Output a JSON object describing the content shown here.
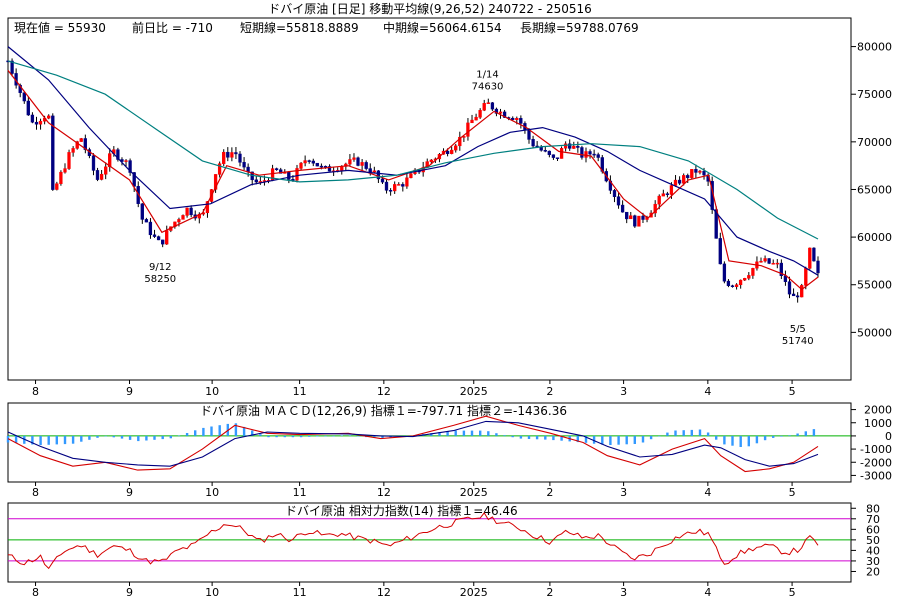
{
  "chart_data": [
    {
      "type": "candlestick",
      "title": "ドバイ原油 [日足]  移動平均線(9,26,52)  240722 - 250516",
      "info": {
        "current": "現在値 = 55930",
        "change": "前日比 = -710",
        "short_ma": "短期線=55818.8889",
        "mid_ma": "中期線=56064.6154",
        "long_ma": "長期線=59788.0769"
      },
      "ylim": [
        45000,
        83000
      ],
      "yticks": [
        50000,
        55000,
        60000,
        65000,
        70000,
        75000,
        80000
      ],
      "ytick_labels": [
        "50000",
        "55000",
        "60000",
        "65000",
        "70000",
        "75000",
        "80000"
      ],
      "xticks": [
        {
          "label": "8",
          "t": 0.034
        },
        {
          "label": "9",
          "t": 0.15
        },
        {
          "label": "10",
          "t": 0.252
        },
        {
          "label": "11",
          "t": 0.36
        },
        {
          "label": "12",
          "t": 0.464
        },
        {
          "label": "2025",
          "t": 0.575
        },
        {
          "label": "2",
          "t": 0.669
        },
        {
          "label": "3",
          "t": 0.76
        },
        {
          "label": "4",
          "t": 0.864
        },
        {
          "label": "5",
          "t": 0.968
        }
      ],
      "annotations": [
        {
          "date": "9/12",
          "value": "58250",
          "t": 0.188,
          "price": 58250,
          "pos": "below"
        },
        {
          "date": "1/14",
          "value": "74630",
          "t": 0.592,
          "price": 74630,
          "pos": "above"
        },
        {
          "date": "5/5",
          "value": "51740",
          "t": 0.975,
          "price": 51740,
          "pos": "below"
        }
      ],
      "closes": [
        {
          "t": 0.0,
          "v": 78500
        },
        {
          "t": 0.03,
          "v": 72000
        },
        {
          "t": 0.05,
          "v": 73000
        },
        {
          "t": 0.055,
          "v": 64500
        },
        {
          "t": 0.075,
          "v": 68500
        },
        {
          "t": 0.09,
          "v": 70500
        },
        {
          "t": 0.11,
          "v": 66000
        },
        {
          "t": 0.13,
          "v": 69000
        },
        {
          "t": 0.15,
          "v": 67500
        },
        {
          "t": 0.165,
          "v": 62000
        },
        {
          "t": 0.18,
          "v": 60000
        },
        {
          "t": 0.188,
          "v": 59200
        },
        {
          "t": 0.2,
          "v": 61000
        },
        {
          "t": 0.22,
          "v": 63000
        },
        {
          "t": 0.24,
          "v": 62000
        },
        {
          "t": 0.255,
          "v": 66500
        },
        {
          "t": 0.265,
          "v": 68500
        },
        {
          "t": 0.28,
          "v": 69000
        },
        {
          "t": 0.295,
          "v": 66500
        },
        {
          "t": 0.31,
          "v": 65500
        },
        {
          "t": 0.33,
          "v": 67000
        },
        {
          "t": 0.35,
          "v": 66000
        },
        {
          "t": 0.37,
          "v": 68500
        },
        {
          "t": 0.39,
          "v": 67000
        },
        {
          "t": 0.41,
          "v": 67500
        },
        {
          "t": 0.43,
          "v": 68000
        },
        {
          "t": 0.45,
          "v": 67000
        },
        {
          "t": 0.465,
          "v": 65000
        },
        {
          "t": 0.485,
          "v": 65500
        },
        {
          "t": 0.5,
          "v": 66500
        },
        {
          "t": 0.52,
          "v": 68000
        },
        {
          "t": 0.54,
          "v": 69000
        },
        {
          "t": 0.56,
          "v": 70500
        },
        {
          "t": 0.575,
          "v": 72500
        },
        {
          "t": 0.592,
          "v": 74000
        },
        {
          "t": 0.61,
          "v": 73000
        },
        {
          "t": 0.63,
          "v": 72500
        },
        {
          "t": 0.645,
          "v": 70000
        },
        {
          "t": 0.66,
          "v": 69000
        },
        {
          "t": 0.675,
          "v": 68000
        },
        {
          "t": 0.69,
          "v": 70000
        },
        {
          "t": 0.71,
          "v": 68500
        },
        {
          "t": 0.725,
          "v": 69000
        },
        {
          "t": 0.74,
          "v": 66000
        },
        {
          "t": 0.76,
          "v": 62500
        },
        {
          "t": 0.775,
          "v": 61500
        },
        {
          "t": 0.79,
          "v": 62500
        },
        {
          "t": 0.81,
          "v": 64500
        },
        {
          "t": 0.83,
          "v": 66000
        },
        {
          "t": 0.85,
          "v": 67000
        },
        {
          "t": 0.864,
          "v": 66000
        },
        {
          "t": 0.872,
          "v": 61000
        },
        {
          "t": 0.882,
          "v": 55500
        },
        {
          "t": 0.895,
          "v": 55000
        },
        {
          "t": 0.91,
          "v": 56000
        },
        {
          "t": 0.93,
          "v": 57500
        },
        {
          "t": 0.95,
          "v": 57000
        },
        {
          "t": 0.968,
          "v": 53500
        },
        {
          "t": 0.98,
          "v": 54500
        },
        {
          "t": 0.99,
          "v": 58500
        },
        {
          "t": 1.0,
          "v": 55930
        }
      ],
      "ma": [
        {
          "name": "",
          "color": "#d40000",
          "points": [
            {
              "t": 0.0,
              "v": 77500
            },
            {
              "t": 0.05,
              "v": 72000
            },
            {
              "t": 0.1,
              "v": 69000
            },
            {
              "t": 0.15,
              "v": 66000
            },
            {
              "t": 0.19,
              "v": 60500
            },
            {
              "t": 0.24,
              "v": 62500
            },
            {
              "t": 0.27,
              "v": 67500
            },
            {
              "t": 0.31,
              "v": 66500
            },
            {
              "t": 0.36,
              "v": 67000
            },
            {
              "t": 0.42,
              "v": 67500
            },
            {
              "t": 0.47,
              "v": 66000
            },
            {
              "t": 0.52,
              "v": 67500
            },
            {
              "t": 0.56,
              "v": 70500
            },
            {
              "t": 0.6,
              "v": 73200
            },
            {
              "t": 0.64,
              "v": 71500
            },
            {
              "t": 0.68,
              "v": 69000
            },
            {
              "t": 0.72,
              "v": 68500
            },
            {
              "t": 0.76,
              "v": 64000
            },
            {
              "t": 0.79,
              "v": 62000
            },
            {
              "t": 0.84,
              "v": 66000
            },
            {
              "t": 0.865,
              "v": 66500
            },
            {
              "t": 0.89,
              "v": 57500
            },
            {
              "t": 0.93,
              "v": 57000
            },
            {
              "t": 0.96,
              "v": 56000
            },
            {
              "t": 0.98,
              "v": 54500
            },
            {
              "t": 1.0,
              "v": 55800
            }
          ]
        },
        {
          "name": "",
          "color": "#000080",
          "points": [
            {
              "t": 0.0,
              "v": 80000
            },
            {
              "t": 0.05,
              "v": 76500
            },
            {
              "t": 0.1,
              "v": 71500
            },
            {
              "t": 0.15,
              "v": 67000
            },
            {
              "t": 0.2,
              "v": 63000
            },
            {
              "t": 0.25,
              "v": 63500
            },
            {
              "t": 0.3,
              "v": 65500
            },
            {
              "t": 0.36,
              "v": 66500
            },
            {
              "t": 0.42,
              "v": 67000
            },
            {
              "t": 0.48,
              "v": 66500
            },
            {
              "t": 0.54,
              "v": 67500
            },
            {
              "t": 0.58,
              "v": 69500
            },
            {
              "t": 0.62,
              "v": 71000
            },
            {
              "t": 0.66,
              "v": 71500
            },
            {
              "t": 0.7,
              "v": 70500
            },
            {
              "t": 0.74,
              "v": 69000
            },
            {
              "t": 0.78,
              "v": 67000
            },
            {
              "t": 0.82,
              "v": 65500
            },
            {
              "t": 0.86,
              "v": 64000
            },
            {
              "t": 0.9,
              "v": 60000
            },
            {
              "t": 0.94,
              "v": 58500
            },
            {
              "t": 0.97,
              "v": 57500
            },
            {
              "t": 1.0,
              "v": 56000
            }
          ]
        },
        {
          "name": "",
          "color": "#008080",
          "points": [
            {
              "t": 0.0,
              "v": 78500
            },
            {
              "t": 0.06,
              "v": 77000
            },
            {
              "t": 0.12,
              "v": 75000
            },
            {
              "t": 0.18,
              "v": 71500
            },
            {
              "t": 0.24,
              "v": 68000
            },
            {
              "t": 0.3,
              "v": 66500
            },
            {
              "t": 0.36,
              "v": 65800
            },
            {
              "t": 0.42,
              "v": 66000
            },
            {
              "t": 0.48,
              "v": 66500
            },
            {
              "t": 0.54,
              "v": 67800
            },
            {
              "t": 0.6,
              "v": 68800
            },
            {
              "t": 0.66,
              "v": 69500
            },
            {
              "t": 0.72,
              "v": 69800
            },
            {
              "t": 0.78,
              "v": 69500
            },
            {
              "t": 0.84,
              "v": 68000
            },
            {
              "t": 0.9,
              "v": 65000
            },
            {
              "t": 0.95,
              "v": 62000
            },
            {
              "t": 1.0,
              "v": 59800
            }
          ]
        }
      ]
    },
    {
      "type": "macd",
      "title": "ドバイ原油    ＭＡＣＤ(12,26,9) 指標１=-797.71   指標２=-1436.36",
      "ylim": [
        -3500,
        2500
      ],
      "yticks": [
        2000,
        1000,
        0,
        -1000,
        -2000,
        -3000
      ],
      "ytick_labels": [
        "2000",
        "1000",
        "0",
        "-1000",
        "-2000",
        "-3000"
      ],
      "macd": [
        {
          "t": 0.0,
          "v": -200
        },
        {
          "t": 0.04,
          "v": -1500
        },
        {
          "t": 0.08,
          "v": -2300
        },
        {
          "t": 0.12,
          "v": -2000
        },
        {
          "t": 0.16,
          "v": -2600
        },
        {
          "t": 0.2,
          "v": -2500
        },
        {
          "t": 0.24,
          "v": -1000
        },
        {
          "t": 0.28,
          "v": 800
        },
        {
          "t": 0.32,
          "v": 200
        },
        {
          "t": 0.36,
          "v": 100
        },
        {
          "t": 0.42,
          "v": 200
        },
        {
          "t": 0.46,
          "v": -200
        },
        {
          "t": 0.5,
          "v": 0
        },
        {
          "t": 0.55,
          "v": 800
        },
        {
          "t": 0.59,
          "v": 1500
        },
        {
          "t": 0.63,
          "v": 800
        },
        {
          "t": 0.67,
          "v": 200
        },
        {
          "t": 0.71,
          "v": -500
        },
        {
          "t": 0.74,
          "v": -1500
        },
        {
          "t": 0.78,
          "v": -2200
        },
        {
          "t": 0.82,
          "v": -1000
        },
        {
          "t": 0.86,
          "v": -200
        },
        {
          "t": 0.88,
          "v": -1500
        },
        {
          "t": 0.91,
          "v": -2700
        },
        {
          "t": 0.94,
          "v": -2500
        },
        {
          "t": 0.97,
          "v": -2000
        },
        {
          "t": 1.0,
          "v": -800
        }
      ],
      "signal": [
        {
          "t": 0.0,
          "v": 300
        },
        {
          "t": 0.04,
          "v": -800
        },
        {
          "t": 0.08,
          "v": -1700
        },
        {
          "t": 0.12,
          "v": -2000
        },
        {
          "t": 0.16,
          "v": -2200
        },
        {
          "t": 0.2,
          "v": -2300
        },
        {
          "t": 0.24,
          "v": -1600
        },
        {
          "t": 0.28,
          "v": -200
        },
        {
          "t": 0.32,
          "v": 300
        },
        {
          "t": 0.36,
          "v": 200
        },
        {
          "t": 0.42,
          "v": 150
        },
        {
          "t": 0.46,
          "v": 0
        },
        {
          "t": 0.5,
          "v": -50
        },
        {
          "t": 0.55,
          "v": 400
        },
        {
          "t": 0.59,
          "v": 1100
        },
        {
          "t": 0.63,
          "v": 1000
        },
        {
          "t": 0.67,
          "v": 500
        },
        {
          "t": 0.71,
          "v": 0
        },
        {
          "t": 0.74,
          "v": -800
        },
        {
          "t": 0.78,
          "v": -1600
        },
        {
          "t": 0.82,
          "v": -1400
        },
        {
          "t": 0.86,
          "v": -700
        },
        {
          "t": 0.88,
          "v": -900
        },
        {
          "t": 0.91,
          "v": -1800
        },
        {
          "t": 0.94,
          "v": -2300
        },
        {
          "t": 0.97,
          "v": -2100
        },
        {
          "t": 1.0,
          "v": -1400
        }
      ]
    },
    {
      "type": "rsi",
      "title": "ドバイ原油    相対力指数(14) 指標１=46.46",
      "ylim": [
        10,
        85
      ],
      "yticks": [
        80,
        70,
        60,
        50,
        40,
        30,
        20
      ],
      "ytick_labels": [
        "80",
        "70",
        "60",
        "50",
        "40",
        "30",
        "20"
      ],
      "levels": [
        {
          "v": 70,
          "color": "#d000d0"
        },
        {
          "v": 50,
          "color": "#00b000"
        },
        {
          "v": 30,
          "color": "#d000d0"
        }
      ],
      "values": [
        {
          "t": 0.0,
          "v": 35
        },
        {
          "t": 0.02,
          "v": 28
        },
        {
          "t": 0.04,
          "v": 34
        },
        {
          "t": 0.05,
          "v": 22
        },
        {
          "t": 0.07,
          "v": 40
        },
        {
          "t": 0.09,
          "v": 45
        },
        {
          "t": 0.11,
          "v": 36
        },
        {
          "t": 0.13,
          "v": 44
        },
        {
          "t": 0.15,
          "v": 40
        },
        {
          "t": 0.17,
          "v": 30
        },
        {
          "t": 0.19,
          "v": 29
        },
        {
          "t": 0.21,
          "v": 40
        },
        {
          "t": 0.23,
          "v": 45
        },
        {
          "t": 0.25,
          "v": 57
        },
        {
          "t": 0.27,
          "v": 66
        },
        {
          "t": 0.29,
          "v": 60
        },
        {
          "t": 0.31,
          "v": 48
        },
        {
          "t": 0.33,
          "v": 56
        },
        {
          "t": 0.35,
          "v": 50
        },
        {
          "t": 0.37,
          "v": 59
        },
        {
          "t": 0.39,
          "v": 54
        },
        {
          "t": 0.41,
          "v": 56
        },
        {
          "t": 0.43,
          "v": 52
        },
        {
          "t": 0.45,
          "v": 49
        },
        {
          "t": 0.47,
          "v": 44
        },
        {
          "t": 0.49,
          "v": 50
        },
        {
          "t": 0.51,
          "v": 56
        },
        {
          "t": 0.53,
          "v": 62
        },
        {
          "t": 0.55,
          "v": 66
        },
        {
          "t": 0.57,
          "v": 70
        },
        {
          "t": 0.59,
          "v": 73
        },
        {
          "t": 0.61,
          "v": 66
        },
        {
          "t": 0.63,
          "v": 62
        },
        {
          "t": 0.65,
          "v": 54
        },
        {
          "t": 0.67,
          "v": 48
        },
        {
          "t": 0.69,
          "v": 58
        },
        {
          "t": 0.71,
          "v": 52
        },
        {
          "t": 0.73,
          "v": 54
        },
        {
          "t": 0.75,
          "v": 42
        },
        {
          "t": 0.77,
          "v": 32
        },
        {
          "t": 0.79,
          "v": 36
        },
        {
          "t": 0.81,
          "v": 46
        },
        {
          "t": 0.83,
          "v": 54
        },
        {
          "t": 0.85,
          "v": 58
        },
        {
          "t": 0.865,
          "v": 56
        },
        {
          "t": 0.875,
          "v": 40
        },
        {
          "t": 0.885,
          "v": 28
        },
        {
          "t": 0.9,
          "v": 36
        },
        {
          "t": 0.92,
          "v": 42
        },
        {
          "t": 0.94,
          "v": 44
        },
        {
          "t": 0.96,
          "v": 38
        },
        {
          "t": 0.975,
          "v": 40
        },
        {
          "t": 0.99,
          "v": 52
        },
        {
          "t": 1.0,
          "v": 46
        }
      ]
    }
  ]
}
